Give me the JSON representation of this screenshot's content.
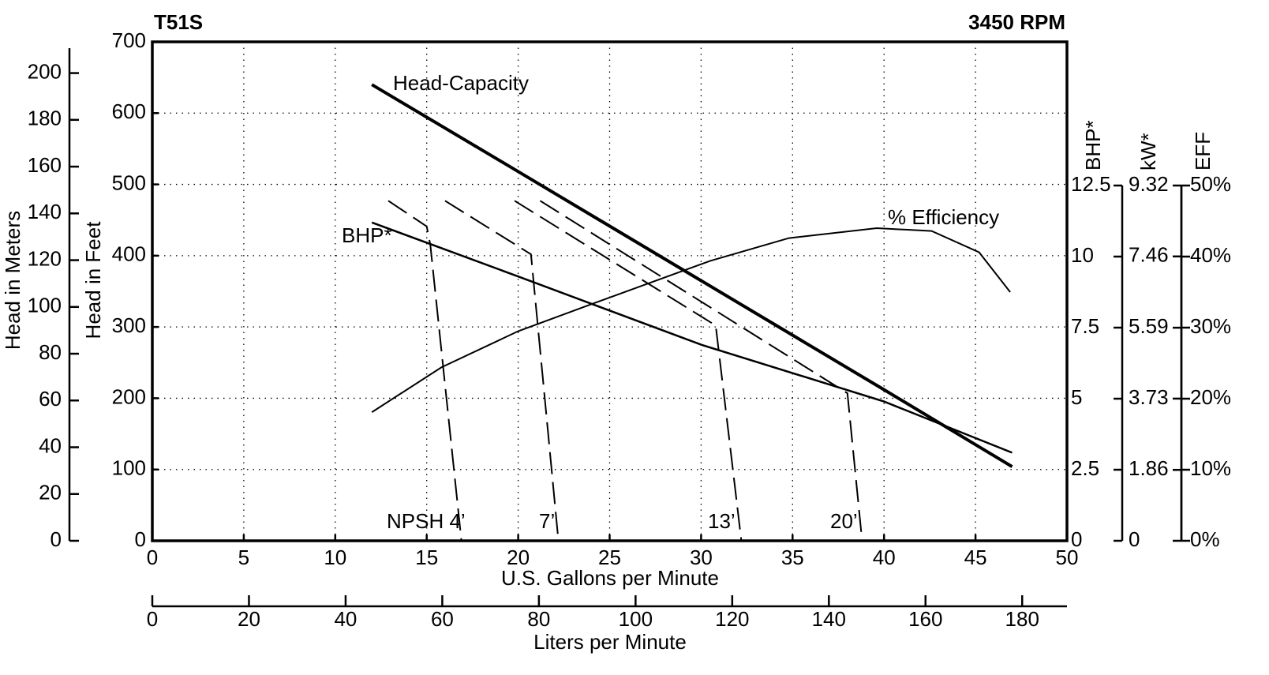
{
  "chart_data": {
    "type": "line",
    "title": "T51S",
    "subtitle": "3450 RPM",
    "xlabel": "U.S. Gallons per Minute",
    "xlim": [
      0,
      50
    ],
    "xticks": [
      0,
      5,
      10,
      15,
      20,
      25,
      30,
      35,
      40,
      45,
      50
    ],
    "x2label": "Liters per Minute",
    "x2lim": [
      0,
      189.27
    ],
    "x2ticks": [
      0,
      20,
      40,
      60,
      80,
      100,
      120,
      140,
      160,
      180
    ],
    "ylabel": "Head in Feet",
    "ylim": [
      0,
      700
    ],
    "yticks": [
      0,
      100,
      200,
      300,
      400,
      500,
      600,
      700
    ],
    "grid": true,
    "y_meters": {
      "label": "Head in Meters",
      "lim": [
        0,
        213.36
      ],
      "ticks": [
        0,
        20,
        40,
        60,
        80,
        100,
        120,
        140,
        160,
        180,
        200
      ]
    },
    "y_bhp": {
      "label": "BHP*",
      "lim": [
        0,
        12.5
      ],
      "ticks": [
        0,
        2.5,
        5,
        7.5,
        10,
        12.5
      ]
    },
    "y_kw": {
      "label": "kW*",
      "lim": [
        0,
        9.32
      ],
      "ticks": [
        0,
        1.86,
        3.73,
        5.59,
        7.46,
        9.32
      ]
    },
    "y_eff": {
      "label": "EFF",
      "lim": [
        0,
        50
      ],
      "ticks": [
        {
          "value": 0,
          "label": "0%"
        },
        {
          "value": 10,
          "label": "10%"
        },
        {
          "value": 20,
          "label": "20%"
        },
        {
          "value": 30,
          "label": "30%"
        },
        {
          "value": 40,
          "label": "40%"
        },
        {
          "value": 50,
          "label": "50%"
        }
      ]
    },
    "series": [
      {
        "name": "Head-Capacity",
        "color": "#000000",
        "axis": "y",
        "dashed": false,
        "x": [
          12,
          20,
          30,
          40,
          47
        ],
        "values": [
          640,
          518,
          365,
          212,
          104
        ]
      },
      {
        "name": "BHP*",
        "color": "#000000",
        "axis": "y_bhp",
        "dashed": false,
        "x": [
          12,
          20,
          30,
          40,
          47
        ],
        "values": [
          11.2,
          9.3,
          6.9,
          4.9,
          3.1
        ]
      },
      {
        "name": "% Efficiency",
        "color": "#000000",
        "axis": "y_eff",
        "dashed": false,
        "x": [
          12,
          15.8,
          20,
          24,
          30.5,
          34.8,
          39.6,
          42.6,
          45.2,
          46.9
        ],
        "values": [
          18.1,
          24.4,
          29.5,
          33.3,
          39.4,
          42.6,
          44,
          43.6,
          40.6,
          35
        ]
      },
      {
        "name": "NPSH 4’",
        "color": "#000000",
        "axis": "y",
        "dashed": true,
        "x": [
          12.9,
          15,
          15.2,
          16.9
        ],
        "values": [
          477,
          441,
          415,
          0
        ]
      },
      {
        "name": "7’",
        "color": "#000000",
        "axis": "y",
        "dashed": true,
        "x": [
          16,
          20.7,
          22.2
        ],
        "values": [
          477,
          402,
          0
        ]
      },
      {
        "name": "13’",
        "color": "#000000",
        "axis": "y",
        "dashed": true,
        "x": [
          19.8,
          30.8,
          32.2
        ],
        "values": [
          477,
          302,
          0
        ]
      },
      {
        "name": "20’",
        "color": "#000000",
        "axis": "y",
        "dashed": true,
        "x": [
          21.2,
          38,
          38.8
        ],
        "values": [
          477,
          207,
          0
        ]
      }
    ]
  }
}
